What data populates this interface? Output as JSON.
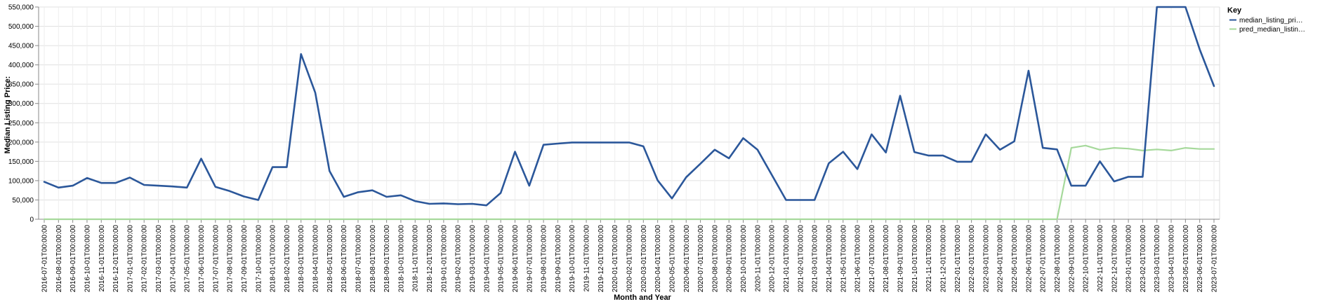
{
  "chart_data": {
    "type": "line",
    "xlabel": "Month and Year",
    "ylabel": "Median Listing Price:",
    "ylim": [
      0,
      550000
    ],
    "yticks": [
      "0",
      "50,000",
      "100,000",
      "150,000",
      "200,000",
      "250,000",
      "300,000",
      "350,000",
      "400,000",
      "450,000",
      "500,000",
      "550,000"
    ],
    "grid": true,
    "legend": {
      "title": "Key",
      "position": "right",
      "entries": [
        "median_listing_pri…",
        "pred_median_listin…"
      ]
    },
    "x": [
      "2016-07-01T00:00:00",
      "2016-08-01T00:00:00",
      "2016-09-01T00:00:00",
      "2016-10-01T00:00:00",
      "2016-11-01T00:00:00",
      "2016-12-01T00:00:00",
      "2017-01-01T00:00:00",
      "2017-02-01T00:00:00",
      "2017-03-01T00:00:00",
      "2017-04-01T00:00:00",
      "2017-05-01T00:00:00",
      "2017-06-01T00:00:00",
      "2017-07-01T00:00:00",
      "2017-08-01T00:00:00",
      "2017-09-01T00:00:00",
      "2017-10-01T00:00:00",
      "2018-01-01T00:00:00",
      "2018-02-01T00:00:00",
      "2018-03-01T00:00:00",
      "2018-04-01T00:00:00",
      "2018-05-01T00:00:00",
      "2018-06-01T00:00:00",
      "2018-07-01T00:00:00",
      "2018-08-01T00:00:00",
      "2018-09-01T00:00:00",
      "2018-10-01T00:00:00",
      "2018-11-01T00:00:00",
      "2018-12-01T00:00:00",
      "2019-01-01T00:00:00",
      "2019-02-01T00:00:00",
      "2019-03-01T00:00:00",
      "2019-04-01T00:00:00",
      "2019-05-01T00:00:00",
      "2019-06-01T00:00:00",
      "2019-07-01T00:00:00",
      "2019-08-01T00:00:00",
      "2019-09-01T00:00:00",
      "2019-10-01T00:00:00",
      "2019-11-01T00:00:00",
      "2019-12-01T00:00:00",
      "2020-01-01T00:00:00",
      "2020-02-01T00:00:00",
      "2020-03-01T00:00:00",
      "2020-04-01T00:00:00",
      "2020-05-01T00:00:00",
      "2020-06-01T00:00:00",
      "2020-07-01T00:00:00",
      "2020-08-01T00:00:00",
      "2020-09-01T00:00:00",
      "2020-10-01T00:00:00",
      "2020-11-01T00:00:00",
      "2020-12-01T00:00:00",
      "2021-01-01T00:00:00",
      "2021-02-01T00:00:00",
      "2021-03-01T00:00:00",
      "2021-04-01T00:00:00",
      "2021-05-01T00:00:00",
      "2021-06-01T00:00:00",
      "2021-07-01T00:00:00",
      "2021-08-01T00:00:00",
      "2021-09-01T00:00:00",
      "2021-10-01T00:00:00",
      "2021-11-01T00:00:00",
      "2021-12-01T00:00:00",
      "2022-01-01T00:00:00",
      "2022-02-01T00:00:00",
      "2022-03-01T00:00:00",
      "2022-04-01T00:00:00",
      "2022-05-01T00:00:00",
      "2022-06-01T00:00:00",
      "2022-07-01T00:00:00",
      "2022-08-01T00:00:00",
      "2022-09-01T00:00:00",
      "2022-10-01T00:00:00",
      "2022-11-01T00:00:00",
      "2022-12-01T00:00:00",
      "2023-01-01T00:00:00",
      "2023-02-01T00:00:00",
      "2023-03-01T00:00:00",
      "2023-04-01T00:00:00",
      "2023-05-01T00:00:00",
      "2023-06-01T00:00:00",
      "2023-07-01T00:00:00"
    ],
    "series": [
      {
        "name": "median_listing_pri…",
        "color": "#2b579a",
        "values": [
          97000,
          82000,
          87000,
          107000,
          94000,
          94000,
          108000,
          89000,
          87000,
          85000,
          82000,
          157000,
          84000,
          73000,
          59000,
          50000,
          135000,
          135000,
          428000,
          328000,
          125000,
          58000,
          70000,
          75000,
          58000,
          62000,
          47000,
          40000,
          41000,
          39000,
          40000,
          36000,
          68000,
          175000,
          87000,
          193000,
          196000,
          199000,
          199000,
          199000,
          199000,
          199000,
          189000,
          101000,
          54000,
          109000,
          144000,
          180000,
          158000,
          210000,
          180000,
          115000,
          50000,
          50000,
          50000,
          145000,
          175000,
          130000,
          220000,
          173000,
          320000,
          174000,
          165000,
          165000,
          149000,
          149000,
          220000,
          180000,
          202000,
          385000,
          185000,
          181000,
          87000,
          87000,
          150000,
          98000,
          110000,
          110000,
          550000,
          550000,
          550000,
          440000,
          345000
        ]
      },
      {
        "name": "pred_median_listin…",
        "color": "#a6d99b",
        "values": [
          0,
          0,
          0,
          0,
          0,
          0,
          0,
          0,
          0,
          0,
          0,
          0,
          0,
          0,
          0,
          0,
          0,
          0,
          0,
          0,
          0,
          0,
          0,
          0,
          0,
          0,
          0,
          0,
          0,
          0,
          0,
          0,
          0,
          0,
          0,
          0,
          0,
          0,
          0,
          0,
          0,
          0,
          0,
          0,
          0,
          0,
          0,
          0,
          0,
          0,
          0,
          0,
          0,
          0,
          0,
          0,
          0,
          0,
          0,
          0,
          0,
          0,
          0,
          0,
          0,
          0,
          0,
          0,
          0,
          0,
          0,
          0,
          185000,
          191000,
          180000,
          185000,
          183000,
          178000,
          181000,
          178000,
          185000,
          182000,
          182000
        ]
      }
    ]
  }
}
